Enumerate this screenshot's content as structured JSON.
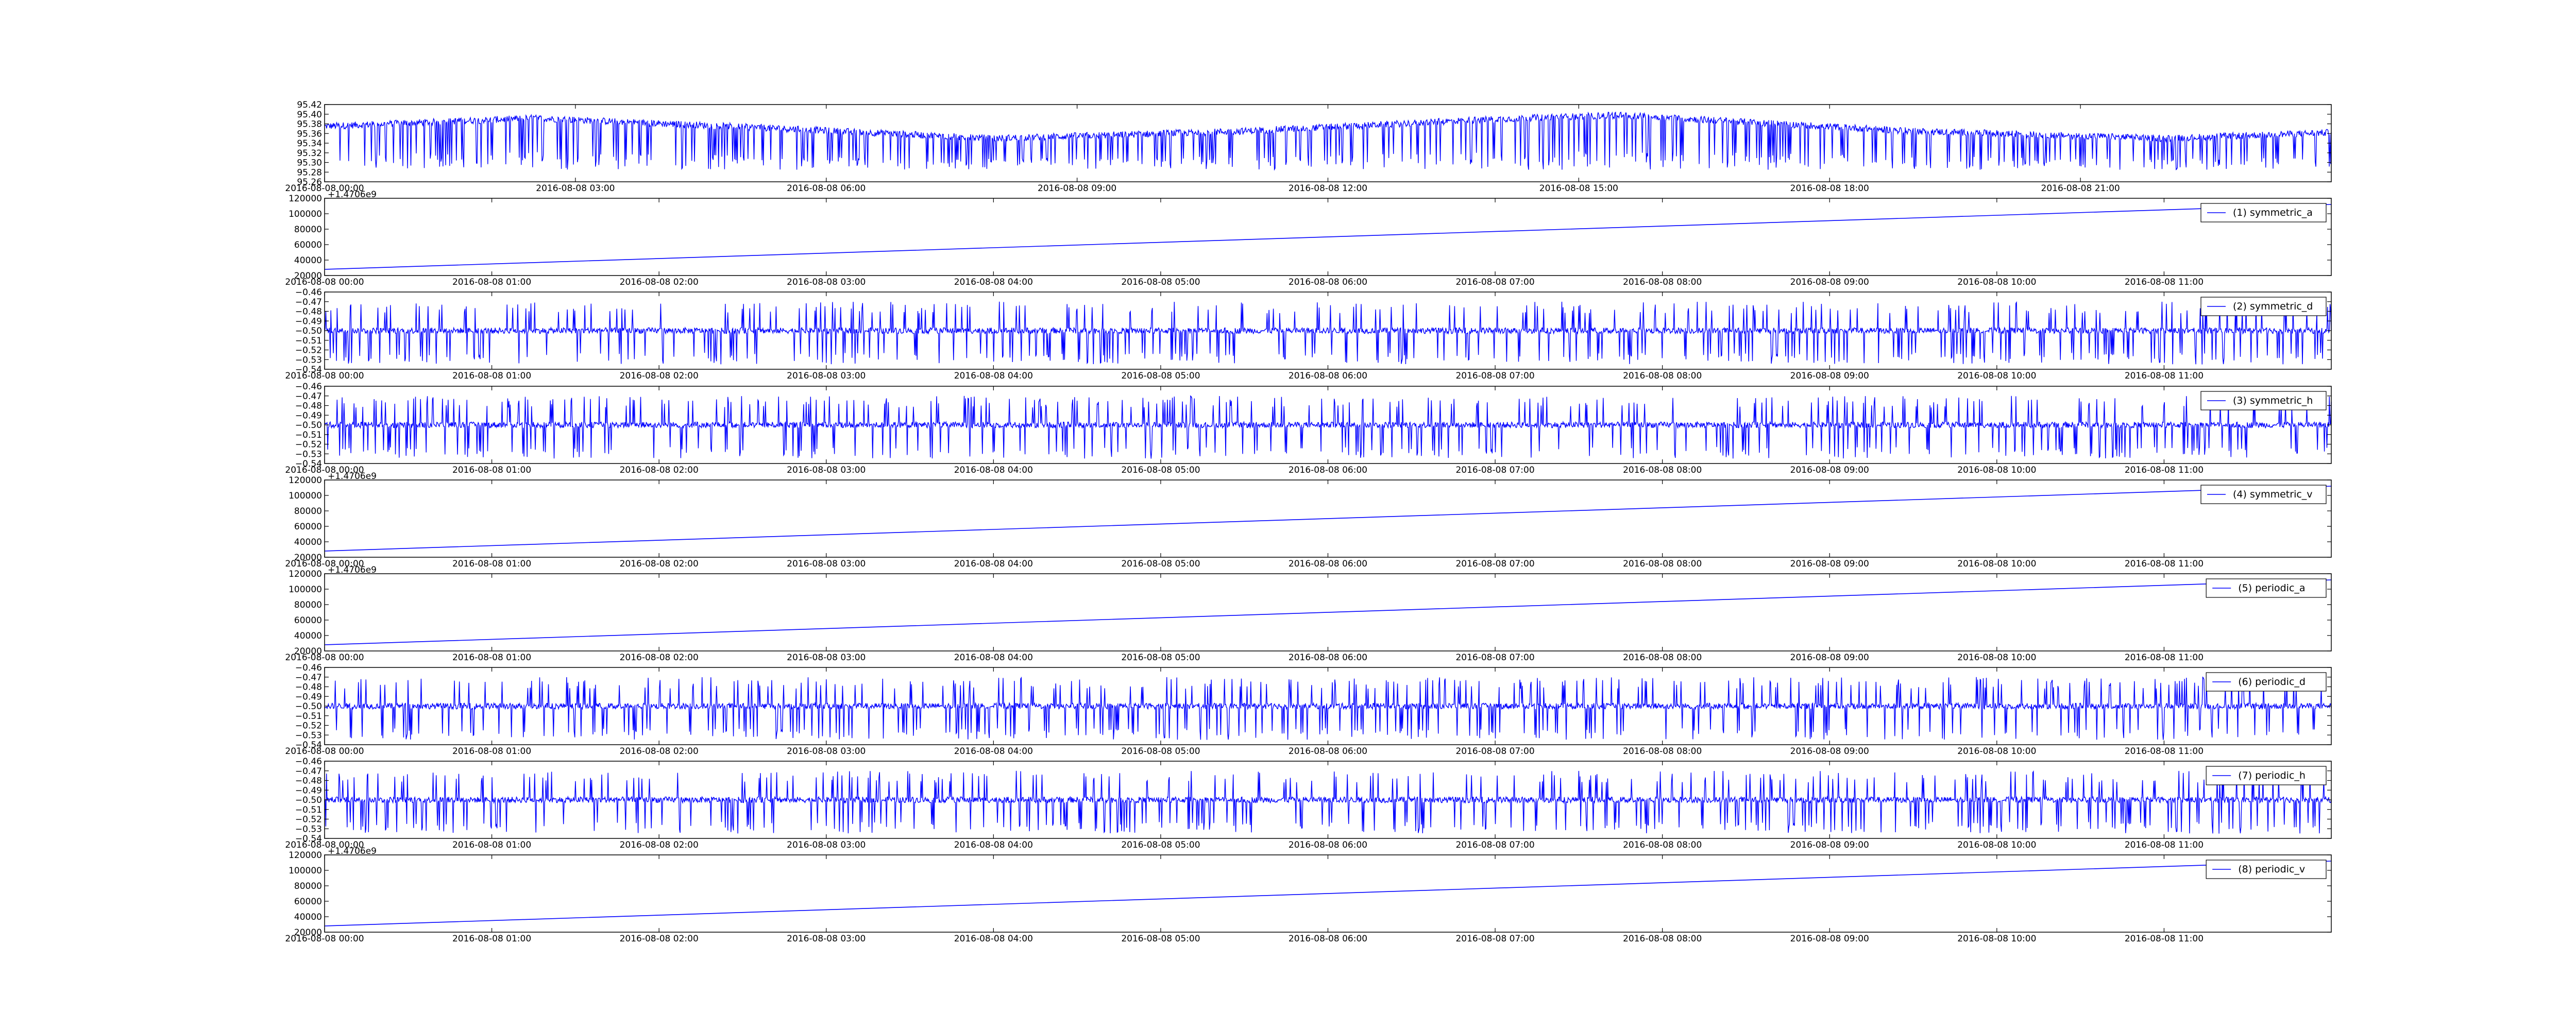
{
  "figure": {
    "background": "#ffffff",
    "line_color": "#0000ff",
    "axis_color": "#000000"
  },
  "chart_data": [
    {
      "type": "line",
      "title": "",
      "xlabel": "",
      "ylabel": "",
      "legend": null,
      "x_tick_labels": [
        "2016-08-08 00:00",
        "2016-08-08 03:00",
        "2016-08-08 06:00",
        "2016-08-08 09:00",
        "2016-08-08 12:00",
        "2016-08-08 15:00",
        "2016-08-08 18:00",
        "2016-08-08 21:00"
      ],
      "x_range": [
        "2016-08-08 00:00",
        "2016-08-09 00:00"
      ],
      "y_tick_labels": [
        "95.26",
        "95.28",
        "95.30",
        "95.32",
        "95.34",
        "95.36",
        "95.38",
        "95.40",
        "95.42"
      ],
      "ylim": [
        95.26,
        95.42
      ],
      "series": [
        {
          "style": "dense noisy trace with frequent downward spikes",
          "baseline": {
            "x": [
              "2016-08-08 00:00",
              "2016-08-08 02:30",
              "2016-08-08 05:30",
              "2016-08-08 08:00",
              "2016-08-08 11:00",
              "2016-08-08 14:00",
              "2016-08-08 15:30",
              "2016-08-08 19:00",
              "2016-08-08 22:00",
              "2016-08-09 00:00"
            ],
            "y": [
              95.375,
              95.392,
              95.37,
              95.35,
              95.365,
              95.39,
              95.398,
              95.365,
              95.35,
              95.362
            ]
          },
          "spike_floor": 95.285
        }
      ]
    },
    {
      "type": "line",
      "title": "",
      "legend": {
        "label": "(1) symmetric_a",
        "loc": "upper right"
      },
      "offset_label": "+1.4706e9",
      "x_tick_labels": [
        "2016-08-08 00:00",
        "2016-08-08 01:00",
        "2016-08-08 02:00",
        "2016-08-08 03:00",
        "2016-08-08 04:00",
        "2016-08-08 05:00",
        "2016-08-08 06:00",
        "2016-08-08 07:00",
        "2016-08-08 08:00",
        "2016-08-08 09:00",
        "2016-08-08 10:00",
        "2016-08-08 11:00"
      ],
      "x_range": [
        "2016-08-08 00:00",
        "2016-08-08 12:00"
      ],
      "y_tick_labels": [
        "20000",
        "40000",
        "60000",
        "80000",
        "100000",
        "120000"
      ],
      "ylim": [
        20000,
        120000
      ],
      "series": [
        {
          "x": [
            "2016-08-08 00:00",
            "2016-08-08 12:00"
          ],
          "y": [
            28000,
            112000
          ],
          "style": "straight line"
        }
      ]
    },
    {
      "type": "line",
      "title": "",
      "legend": {
        "label": "(2) symmetric_d",
        "loc": "upper right"
      },
      "x_tick_labels": [
        "2016-08-08 00:00",
        "2016-08-08 01:00",
        "2016-08-08 02:00",
        "2016-08-08 03:00",
        "2016-08-08 04:00",
        "2016-08-08 05:00",
        "2016-08-08 06:00",
        "2016-08-08 07:00",
        "2016-08-08 08:00",
        "2016-08-08 09:00",
        "2016-08-08 10:00",
        "2016-08-08 11:00"
      ],
      "x_range": [
        "2016-08-08 00:00",
        "2016-08-08 12:00"
      ],
      "y_tick_labels": [
        "−0.54",
        "−0.53",
        "−0.52",
        "−0.51",
        "−0.50",
        "−0.49",
        "−0.48",
        "−0.47",
        "−0.46"
      ],
      "ylim": [
        -0.54,
        -0.46
      ],
      "series": [
        {
          "baseline": -0.5,
          "spike_low": -0.535,
          "spike_high": -0.47,
          "style": "dense noisy trace with spikes in both directions"
        }
      ]
    },
    {
      "type": "line",
      "title": "",
      "legend": {
        "label": "(3) symmetric_h",
        "loc": "upper right"
      },
      "x_tick_labels": [
        "2016-08-08 00:00",
        "2016-08-08 01:00",
        "2016-08-08 02:00",
        "2016-08-08 03:00",
        "2016-08-08 04:00",
        "2016-08-08 05:00",
        "2016-08-08 06:00",
        "2016-08-08 07:00",
        "2016-08-08 08:00",
        "2016-08-08 09:00",
        "2016-08-08 10:00",
        "2016-08-08 11:00"
      ],
      "x_range": [
        "2016-08-08 00:00",
        "2016-08-08 12:00"
      ],
      "y_tick_labels": [
        "−0.54",
        "−0.53",
        "−0.52",
        "−0.51",
        "−0.50",
        "−0.49",
        "−0.48",
        "−0.47",
        "−0.46"
      ],
      "ylim": [
        -0.54,
        -0.46
      ],
      "series": [
        {
          "baseline": -0.5,
          "spike_low": -0.535,
          "spike_high": -0.47,
          "style": "dense noisy trace with spikes in both directions"
        }
      ]
    },
    {
      "type": "line",
      "title": "",
      "legend": {
        "label": "(4) symmetric_v",
        "loc": "upper right"
      },
      "offset_label": "+1.4706e9",
      "x_tick_labels": [
        "2016-08-08 00:00",
        "2016-08-08 01:00",
        "2016-08-08 02:00",
        "2016-08-08 03:00",
        "2016-08-08 04:00",
        "2016-08-08 05:00",
        "2016-08-08 06:00",
        "2016-08-08 07:00",
        "2016-08-08 08:00",
        "2016-08-08 09:00",
        "2016-08-08 10:00",
        "2016-08-08 11:00"
      ],
      "x_range": [
        "2016-08-08 00:00",
        "2016-08-08 12:00"
      ],
      "y_tick_labels": [
        "20000",
        "40000",
        "60000",
        "80000",
        "100000",
        "120000"
      ],
      "ylim": [
        20000,
        120000
      ],
      "series": [
        {
          "x": [
            "2016-08-08 00:00",
            "2016-08-08 12:00"
          ],
          "y": [
            28000,
            112000
          ],
          "style": "straight line"
        }
      ]
    },
    {
      "type": "line",
      "title": "",
      "legend": {
        "label": "(5) periodic_a",
        "loc": "upper right"
      },
      "offset_label": "+1.4706e9",
      "x_tick_labels": [
        "2016-08-08 00:00",
        "2016-08-08 01:00",
        "2016-08-08 02:00",
        "2016-08-08 03:00",
        "2016-08-08 04:00",
        "2016-08-08 05:00",
        "2016-08-08 06:00",
        "2016-08-08 07:00",
        "2016-08-08 08:00",
        "2016-08-08 09:00",
        "2016-08-08 10:00",
        "2016-08-08 11:00"
      ],
      "x_range": [
        "2016-08-08 00:00",
        "2016-08-08 12:00"
      ],
      "y_tick_labels": [
        "20000",
        "40000",
        "60000",
        "80000",
        "100000",
        "120000"
      ],
      "ylim": [
        20000,
        120000
      ],
      "series": [
        {
          "x": [
            "2016-08-08 00:00",
            "2016-08-08 12:00"
          ],
          "y": [
            28000,
            112000
          ],
          "style": "straight line"
        }
      ]
    },
    {
      "type": "line",
      "title": "",
      "legend": {
        "label": "(6) periodic_d",
        "loc": "upper right"
      },
      "x_tick_labels": [
        "2016-08-08 00:00",
        "2016-08-08 01:00",
        "2016-08-08 02:00",
        "2016-08-08 03:00",
        "2016-08-08 04:00",
        "2016-08-08 05:00",
        "2016-08-08 06:00",
        "2016-08-08 07:00",
        "2016-08-08 08:00",
        "2016-08-08 09:00",
        "2016-08-08 10:00",
        "2016-08-08 11:00"
      ],
      "x_range": [
        "2016-08-08 00:00",
        "2016-08-08 12:00"
      ],
      "y_tick_labels": [
        "−0.54",
        "−0.53",
        "−0.52",
        "−0.51",
        "−0.50",
        "−0.49",
        "−0.48",
        "−0.47",
        "−0.46"
      ],
      "ylim": [
        -0.54,
        -0.46
      ],
      "series": [
        {
          "baseline": -0.5,
          "spike_low": -0.535,
          "spike_high": -0.47,
          "style": "dense noisy trace with spikes in both directions"
        }
      ]
    },
    {
      "type": "line",
      "title": "",
      "legend": {
        "label": "(7) periodic_h",
        "loc": "upper right"
      },
      "x_tick_labels": [
        "2016-08-08 00:00",
        "2016-08-08 01:00",
        "2016-08-08 02:00",
        "2016-08-08 03:00",
        "2016-08-08 04:00",
        "2016-08-08 05:00",
        "2016-08-08 06:00",
        "2016-08-08 07:00",
        "2016-08-08 08:00",
        "2016-08-08 09:00",
        "2016-08-08 10:00",
        "2016-08-08 11:00"
      ],
      "x_range": [
        "2016-08-08 00:00",
        "2016-08-08 12:00"
      ],
      "y_tick_labels": [
        "−0.54",
        "−0.53",
        "−0.52",
        "−0.51",
        "−0.50",
        "−0.49",
        "−0.48",
        "−0.47",
        "−0.46"
      ],
      "ylim": [
        -0.54,
        -0.46
      ],
      "series": [
        {
          "baseline": -0.5,
          "spike_low": -0.535,
          "spike_high": -0.47,
          "style": "dense noisy trace with spikes in both directions"
        }
      ]
    },
    {
      "type": "line",
      "title": "",
      "legend": {
        "label": "(8) periodic_v",
        "loc": "upper right"
      },
      "offset_label": "+1.4706e9",
      "x_tick_labels": [
        "2016-08-08 00:00",
        "2016-08-08 01:00",
        "2016-08-08 02:00",
        "2016-08-08 03:00",
        "2016-08-08 04:00",
        "2016-08-08 05:00",
        "2016-08-08 06:00",
        "2016-08-08 07:00",
        "2016-08-08 08:00",
        "2016-08-08 09:00",
        "2016-08-08 10:00",
        "2016-08-08 11:00"
      ],
      "x_range": [
        "2016-08-08 00:00",
        "2016-08-08 12:00"
      ],
      "y_tick_labels": [
        "20000",
        "40000",
        "60000",
        "80000",
        "100000",
        "120000"
      ],
      "ylim": [
        20000,
        120000
      ],
      "series": [
        {
          "x": [
            "2016-08-08 00:00",
            "2016-08-08 12:00"
          ],
          "y": [
            28000,
            112000
          ],
          "style": "straight line"
        }
      ]
    }
  ]
}
